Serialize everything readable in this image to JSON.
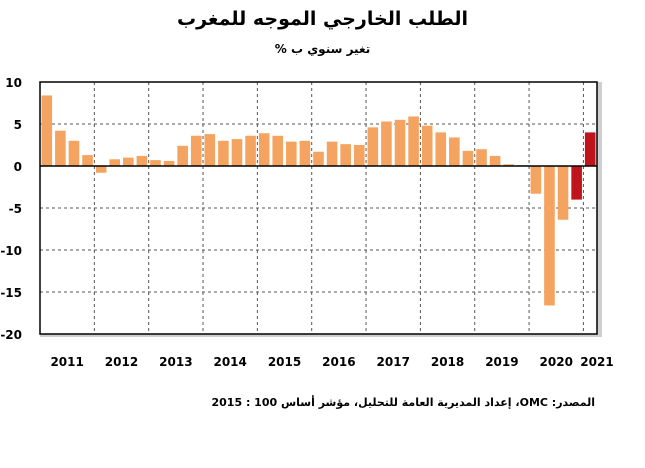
{
  "chart_data": {
    "type": "bar",
    "title": "الطلب الخارجي الموجه للمغرب",
    "subtitle": "تغير سنوي ب %",
    "source": "المصدر: OMC، إعداد المديرية العامة للتحليل، مؤشر أساس 100 : 2015",
    "ylim": [
      -20,
      10
    ],
    "yticks": [
      10,
      5,
      0,
      -5,
      -10,
      -15,
      -20
    ],
    "ytick_labels": [
      "10",
      "5",
      "0",
      "-5",
      "-10",
      "-15",
      "-20"
    ],
    "grid": true,
    "x_year_labels": [
      "2011",
      "2012",
      "2013",
      "2014",
      "2015",
      "2016",
      "2017",
      "2018",
      "2019",
      "2020",
      "2021"
    ],
    "colors": {
      "historical": "#F4A460",
      "forecast": "#C0141C",
      "axis": "#000000",
      "grid": "#555555",
      "frame_shadow": "#CFCFCF"
    },
    "series": [
      {
        "values": [
          8.4,
          4.2,
          3.0,
          1.3,
          -0.8,
          0.8,
          1.0,
          1.2,
          0.7,
          0.6,
          2.4,
          3.6,
          3.8,
          3.0,
          3.2,
          3.6,
          3.9,
          3.6,
          2.9,
          3.0,
          1.7,
          2.9,
          2.6,
          2.5,
          4.6,
          5.3,
          5.5,
          5.9,
          4.8,
          4.0,
          3.4,
          1.8,
          2.0,
          1.2,
          0.2,
          0.1,
          -3.3,
          -16.6,
          -6.4,
          -4.0,
          4.0
        ],
        "forecast_from_index": 39
      }
    ]
  }
}
